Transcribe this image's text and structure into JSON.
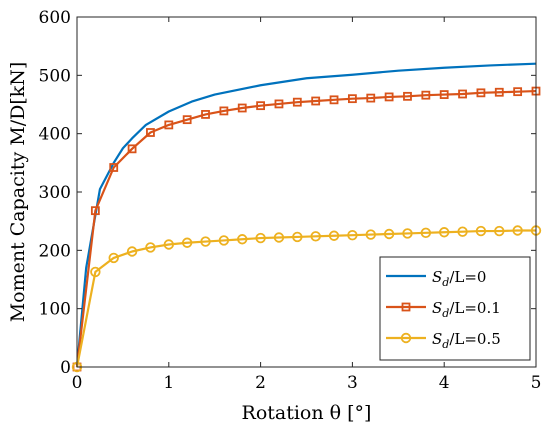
{
  "chart_data": {
    "type": "line",
    "xlabel": "Rotation θ [°]",
    "ylabel": "Moment Capacity M/D[kN]",
    "xlim": [
      0,
      5
    ],
    "ylim": [
      0,
      600
    ],
    "xticks": [
      "0",
      "1",
      "2",
      "3",
      "4",
      "5"
    ],
    "yticks": [
      "0",
      "100",
      "200",
      "300",
      "400",
      "500",
      "600"
    ],
    "grid": false,
    "legend_position": "bottom-right",
    "series": [
      {
        "name": "S_d/L=0",
        "legend_base": "S",
        "legend_sub": "d",
        "legend_rest": "/L=0",
        "color": "#0072BD",
        "marker": "none",
        "x": [
          0,
          0.1,
          0.25,
          0.4,
          0.5,
          0.6,
          0.75,
          1.0,
          1.25,
          1.5,
          2.0,
          2.5,
          3.0,
          3.5,
          4.0,
          4.5,
          5.0
        ],
        "y": [
          0,
          170,
          305,
          350,
          375,
          392,
          415,
          438,
          455,
          467,
          483,
          495,
          501,
          508,
          513,
          517,
          520
        ]
      },
      {
        "name": "S_d/L=0.1",
        "legend_base": "S",
        "legend_sub": "d",
        "legend_rest": "/L=0.1",
        "color": "#D95319",
        "marker": "square",
        "x": [
          0,
          0.2,
          0.4,
          0.6,
          0.8,
          1.0,
          1.2,
          1.4,
          1.6,
          1.8,
          2.0,
          2.2,
          2.4,
          2.6,
          2.8,
          3.0,
          3.2,
          3.4,
          3.6,
          3.8,
          4.0,
          4.2,
          4.4,
          4.6,
          4.8,
          5.0
        ],
        "y": [
          0,
          268,
          342,
          374,
          402,
          415,
          424,
          433,
          439,
          444,
          448,
          451,
          454,
          456,
          458,
          460,
          461,
          463,
          464,
          466,
          467,
          468,
          470,
          471,
          472,
          473
        ]
      },
      {
        "name": "S_d/L=0.5",
        "legend_base": "S",
        "legend_sub": "d",
        "legend_rest": "/L=0.5",
        "color": "#EDB120",
        "marker": "circle",
        "x": [
          0,
          0.2,
          0.4,
          0.6,
          0.8,
          1.0,
          1.2,
          1.4,
          1.6,
          1.8,
          2.0,
          2.2,
          2.4,
          2.6,
          2.8,
          3.0,
          3.2,
          3.4,
          3.6,
          3.8,
          4.0,
          4.2,
          4.4,
          4.6,
          4.8,
          5.0
        ],
        "y": [
          0,
          163,
          187,
          198,
          205,
          210,
          213,
          215,
          217,
          219,
          221,
          222,
          223,
          224,
          225,
          226,
          227,
          228,
          229,
          230,
          231,
          232,
          233,
          233,
          234,
          234
        ]
      }
    ]
  }
}
